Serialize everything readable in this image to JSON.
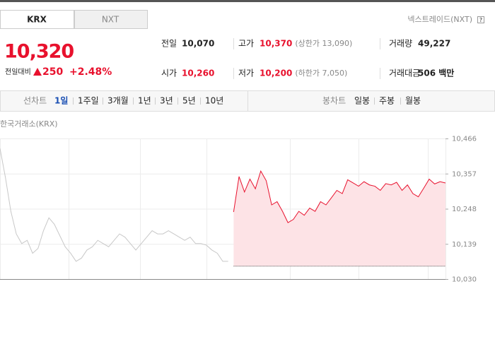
{
  "tabs": [
    "KRX",
    "NXT"
  ],
  "nxt_link": "넥스트레이드(NXT)",
  "help_icon": "?",
  "quote": {
    "price": "10,320",
    "change_label": "전일대비",
    "change": "250",
    "change_rate": "+2.48%"
  },
  "stats": [
    [
      {
        "label": "전일",
        "value": "10,070"
      },
      {
        "label": "고가",
        "value": "10,370",
        "note": "(상한가 13,090)"
      },
      {
        "label": "거래량",
        "value": "49,227"
      }
    ],
    [
      {
        "label": "시가",
        "value": "10,260"
      },
      {
        "label": "저가",
        "value": "10,200",
        "note": "(하한가 7,050)"
      },
      {
        "label": "거래대금",
        "value": "506 백만"
      }
    ]
  ],
  "toolbar": {
    "line_label": "선차트",
    "line_periods": [
      "1일",
      "1주일",
      "3개월",
      "1년",
      "3년",
      "5년",
      "10년"
    ],
    "candle_label": "봉차트",
    "candle_periods": [
      "일봉",
      "주봉",
      "월봉"
    ]
  },
  "chart_data": {
    "type": "line",
    "title": "한국거래소(KRX)",
    "ylim": [
      10030,
      10466
    ],
    "yticks": [
      {
        "value": 10466,
        "label": "10,466"
      },
      {
        "value": 10357,
        "label": "10,357"
      },
      {
        "value": 10248,
        "label": "10,248"
      },
      {
        "value": 10139,
        "label": "10,139"
      },
      {
        "value": 10030,
        "label": "10,030"
      }
    ],
    "baseline": 10070,
    "series": [
      {
        "color": "#c8c8c8",
        "values": [
          10435,
          10345,
          10240,
          10170,
          10140,
          10150,
          10110,
          10125,
          10180,
          10220,
          10200,
          10165,
          10130,
          10110,
          10085,
          10095,
          10120,
          10130,
          10150,
          10140,
          10130,
          10150,
          10170,
          10160,
          10140,
          10120,
          10140,
          10160,
          10180,
          10170,
          10170,
          10180,
          10170,
          10160,
          10150,
          10160,
          10140,
          10140,
          10135,
          10120,
          10110,
          10085,
          10085,
          null,
          null,
          null,
          null,
          null,
          null,
          null,
          null,
          null,
          null,
          null,
          null,
          null,
          null,
          null,
          null,
          null,
          null,
          null,
          null,
          null,
          null,
          null,
          null,
          null,
          null,
          null,
          null,
          null,
          null,
          null,
          null,
          null,
          null,
          null,
          null,
          null,
          null,
          null,
          null
        ]
      },
      {
        "color": "#e8112d",
        "fill": "#fde3e6",
        "values": [
          null,
          null,
          null,
          null,
          null,
          null,
          null,
          null,
          null,
          null,
          null,
          null,
          null,
          null,
          null,
          null,
          null,
          null,
          null,
          null,
          null,
          null,
          null,
          null,
          null,
          null,
          null,
          null,
          null,
          null,
          null,
          null,
          null,
          null,
          null,
          null,
          null,
          null,
          null,
          null,
          null,
          null,
          null,
          10238,
          10348,
          10300,
          10340,
          10310,
          10365,
          10335,
          10260,
          10270,
          10240,
          10205,
          10215,
          10240,
          10228,
          10250,
          10240,
          10270,
          10260,
          10282,
          10305,
          10295,
          10338,
          10328,
          10318,
          10332,
          10322,
          10318,
          10305,
          10326,
          10322,
          10330,
          10305,
          10322,
          10295,
          10285,
          10312,
          10340,
          10325,
          10332,
          10328
        ]
      }
    ]
  }
}
